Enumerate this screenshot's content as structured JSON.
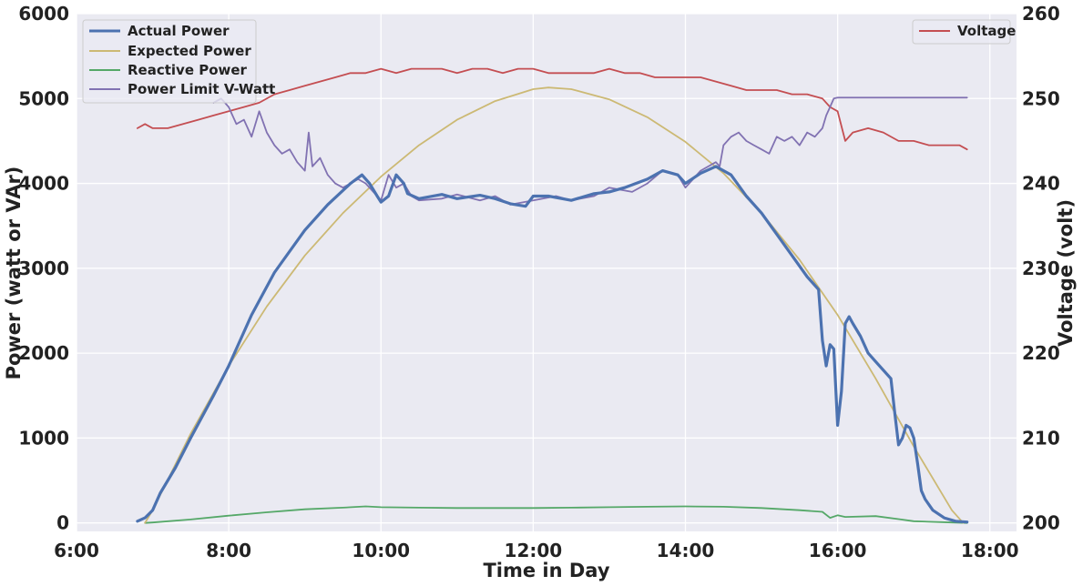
{
  "chart_data": {
    "type": "line",
    "title": "",
    "xlabel": "Time in Day",
    "ylabel": "Power (watt or VAr)",
    "y2label": "Voltage (volt)",
    "xlim": [
      6,
      18.35
    ],
    "ylim": [
      -100,
      6000
    ],
    "y2lim": [
      199,
      260
    ],
    "grid": true,
    "x_ticks": [
      6,
      8,
      10,
      12,
      14,
      16,
      18
    ],
    "x_tick_labels": [
      "6:00",
      "8:00",
      "10:00",
      "12:00",
      "14:00",
      "16:00",
      "18:00"
    ],
    "y_ticks": [
      0,
      1000,
      2000,
      3000,
      4000,
      5000,
      6000
    ],
    "y_tick_labels": [
      "0",
      "1000",
      "2000",
      "3000",
      "4000",
      "5000",
      "6000"
    ],
    "y2_ticks": [
      200,
      210,
      220,
      230,
      240,
      250,
      260
    ],
    "y2_tick_labels": [
      "200",
      "210",
      "220",
      "230",
      "240",
      "250",
      "260"
    ],
    "legend_left_position": "upper-left",
    "legend_right_position": "upper-right",
    "series": [
      {
        "name": "Actual Power",
        "axis": "left",
        "color": "#4c72b0",
        "width": 3.2,
        "x": [
          6.8,
          6.9,
          7.0,
          7.1,
          7.3,
          7.5,
          7.8,
          8.0,
          8.3,
          8.6,
          9.0,
          9.3,
          9.6,
          9.75,
          9.85,
          9.95,
          10.0,
          10.1,
          10.2,
          10.3,
          10.35,
          10.5,
          10.8,
          11.0,
          11.3,
          11.5,
          11.7,
          11.9,
          12.0,
          12.2,
          12.5,
          12.8,
          13.0,
          13.2,
          13.5,
          13.7,
          13.9,
          14.0,
          14.2,
          14.4,
          14.6,
          14.8,
          15.0,
          15.2,
          15.4,
          15.6,
          15.75,
          15.8,
          15.85,
          15.9,
          15.95,
          16.0,
          16.05,
          16.1,
          16.15,
          16.2,
          16.3,
          16.4,
          16.5,
          16.6,
          16.7,
          16.75,
          16.8,
          16.85,
          16.9,
          16.95,
          17.0,
          17.05,
          17.1,
          17.15,
          17.25,
          17.4,
          17.55,
          17.7
        ],
        "y": [
          20,
          60,
          150,
          350,
          650,
          1000,
          1500,
          1850,
          2450,
          2950,
          3450,
          3750,
          4000,
          4100,
          4000,
          3850,
          3780,
          3850,
          4100,
          4000,
          3880,
          3820,
          3870,
          3820,
          3860,
          3820,
          3760,
          3730,
          3850,
          3850,
          3800,
          3880,
          3900,
          3950,
          4050,
          4150,
          4100,
          4000,
          4120,
          4200,
          4100,
          3850,
          3650,
          3400,
          3150,
          2900,
          2750,
          2150,
          1850,
          2100,
          2050,
          1150,
          1550,
          2350,
          2430,
          2350,
          2200,
          2000,
          1900,
          1800,
          1700,
          1300,
          920,
          1000,
          1150,
          1120,
          1000,
          700,
          380,
          280,
          150,
          60,
          20,
          10
        ]
      },
      {
        "name": "Expected Power",
        "axis": "left",
        "color": "#ccb974",
        "width": 1.8,
        "x": [
          6.9,
          7.0,
          7.5,
          8.0,
          8.5,
          9.0,
          9.5,
          10.0,
          10.5,
          11.0,
          11.5,
          12.0,
          12.2,
          12.5,
          13.0,
          13.5,
          14.0,
          14.5,
          15.0,
          15.5,
          16.0,
          16.5,
          17.0,
          17.5,
          17.65
        ],
        "y": [
          0,
          150,
          1050,
          1850,
          2550,
          3150,
          3650,
          4080,
          4450,
          4750,
          4970,
          5110,
          5130,
          5110,
          4990,
          4780,
          4490,
          4120,
          3650,
          3100,
          2450,
          1700,
          900,
          150,
          0
        ]
      },
      {
        "name": "Reactive Power",
        "axis": "left",
        "color": "#55a868",
        "width": 1.8,
        "x": [
          6.9,
          7.0,
          7.5,
          8.0,
          8.5,
          9.0,
          9.5,
          9.8,
          10.0,
          10.5,
          11.0,
          11.5,
          12.0,
          12.5,
          13.0,
          13.5,
          14.0,
          14.5,
          15.0,
          15.5,
          15.8,
          15.9,
          16.0,
          16.1,
          16.5,
          16.8,
          17.0,
          17.5,
          17.7
        ],
        "y": [
          0,
          5,
          40,
          85,
          125,
          160,
          180,
          195,
          185,
          180,
          175,
          175,
          175,
          180,
          185,
          190,
          195,
          190,
          175,
          150,
          130,
          60,
          90,
          70,
          80,
          45,
          20,
          5,
          0
        ]
      },
      {
        "name": "Power Limit V-Watt",
        "axis": "left",
        "color": "#8172b2",
        "width": 1.8,
        "x": [
          7.8,
          7.9,
          8.0,
          8.1,
          8.2,
          8.3,
          8.4,
          8.5,
          8.6,
          8.7,
          8.8,
          8.9,
          9.0,
          9.05,
          9.1,
          9.2,
          9.3,
          9.4,
          9.5,
          9.6,
          9.7,
          9.8,
          9.9,
          10.0,
          10.1,
          10.2,
          10.3,
          10.4,
          10.5,
          10.8,
          11.0,
          11.3,
          11.5,
          11.7,
          12.0,
          12.3,
          12.5,
          12.8,
          13.0,
          13.3,
          13.5,
          13.7,
          13.9,
          14.0,
          14.2,
          14.4,
          14.45,
          14.5,
          14.6,
          14.7,
          14.8,
          14.9,
          15.0,
          15.1,
          15.2,
          15.3,
          15.4,
          15.5,
          15.6,
          15.7,
          15.8,
          15.85,
          15.9,
          15.95,
          16.0,
          16.5,
          17.0,
          17.5,
          17.7
        ],
        "y": [
          4950,
          5000,
          4900,
          4700,
          4750,
          4550,
          4850,
          4600,
          4450,
          4350,
          4400,
          4250,
          4150,
          4600,
          4200,
          4300,
          4100,
          4000,
          3950,
          4000,
          4050,
          4000,
          3900,
          3800,
          4100,
          3950,
          4000,
          3850,
          3800,
          3820,
          3870,
          3800,
          3850,
          3750,
          3800,
          3850,
          3800,
          3850,
          3950,
          3900,
          4000,
          4150,
          4100,
          3950,
          4150,
          4250,
          4200,
          4450,
          4550,
          4600,
          4500,
          4450,
          4400,
          4350,
          4550,
          4500,
          4550,
          4450,
          4600,
          4550,
          4650,
          4800,
          4900,
          5000,
          5010,
          5010,
          5010,
          5010,
          5010
        ]
      },
      {
        "name": "Voltage",
        "axis": "right",
        "color": "#c44e52",
        "width": 1.8,
        "x": [
          6.8,
          6.9,
          7.0,
          7.2,
          7.4,
          7.6,
          7.8,
          8.0,
          8.2,
          8.4,
          8.6,
          8.8,
          9.0,
          9.2,
          9.4,
          9.6,
          9.8,
          10.0,
          10.2,
          10.4,
          10.6,
          10.8,
          11.0,
          11.2,
          11.4,
          11.6,
          11.8,
          12.0,
          12.2,
          12.4,
          12.6,
          12.8,
          13.0,
          13.2,
          13.4,
          13.6,
          13.8,
          14.0,
          14.2,
          14.4,
          14.6,
          14.8,
          15.0,
          15.2,
          15.4,
          15.6,
          15.8,
          15.9,
          16.0,
          16.1,
          16.2,
          16.4,
          16.6,
          16.8,
          17.0,
          17.2,
          17.4,
          17.6,
          17.7
        ],
        "y": [
          246.5,
          247,
          246.5,
          246.5,
          247,
          247.5,
          248,
          248.5,
          249,
          249.5,
          250.5,
          251,
          251.5,
          252,
          252.5,
          253,
          253,
          253.5,
          253,
          253.5,
          253.5,
          253.5,
          253,
          253.5,
          253.5,
          253,
          253.5,
          253.5,
          253,
          253,
          253,
          253,
          253.5,
          253,
          253,
          252.5,
          252.5,
          252.5,
          252.5,
          252,
          251.5,
          251,
          251,
          251,
          250.5,
          250.5,
          250,
          249,
          248.5,
          245,
          246,
          246.5,
          246,
          245,
          245,
          244.5,
          244.5,
          244.5,
          244
        ]
      }
    ]
  }
}
